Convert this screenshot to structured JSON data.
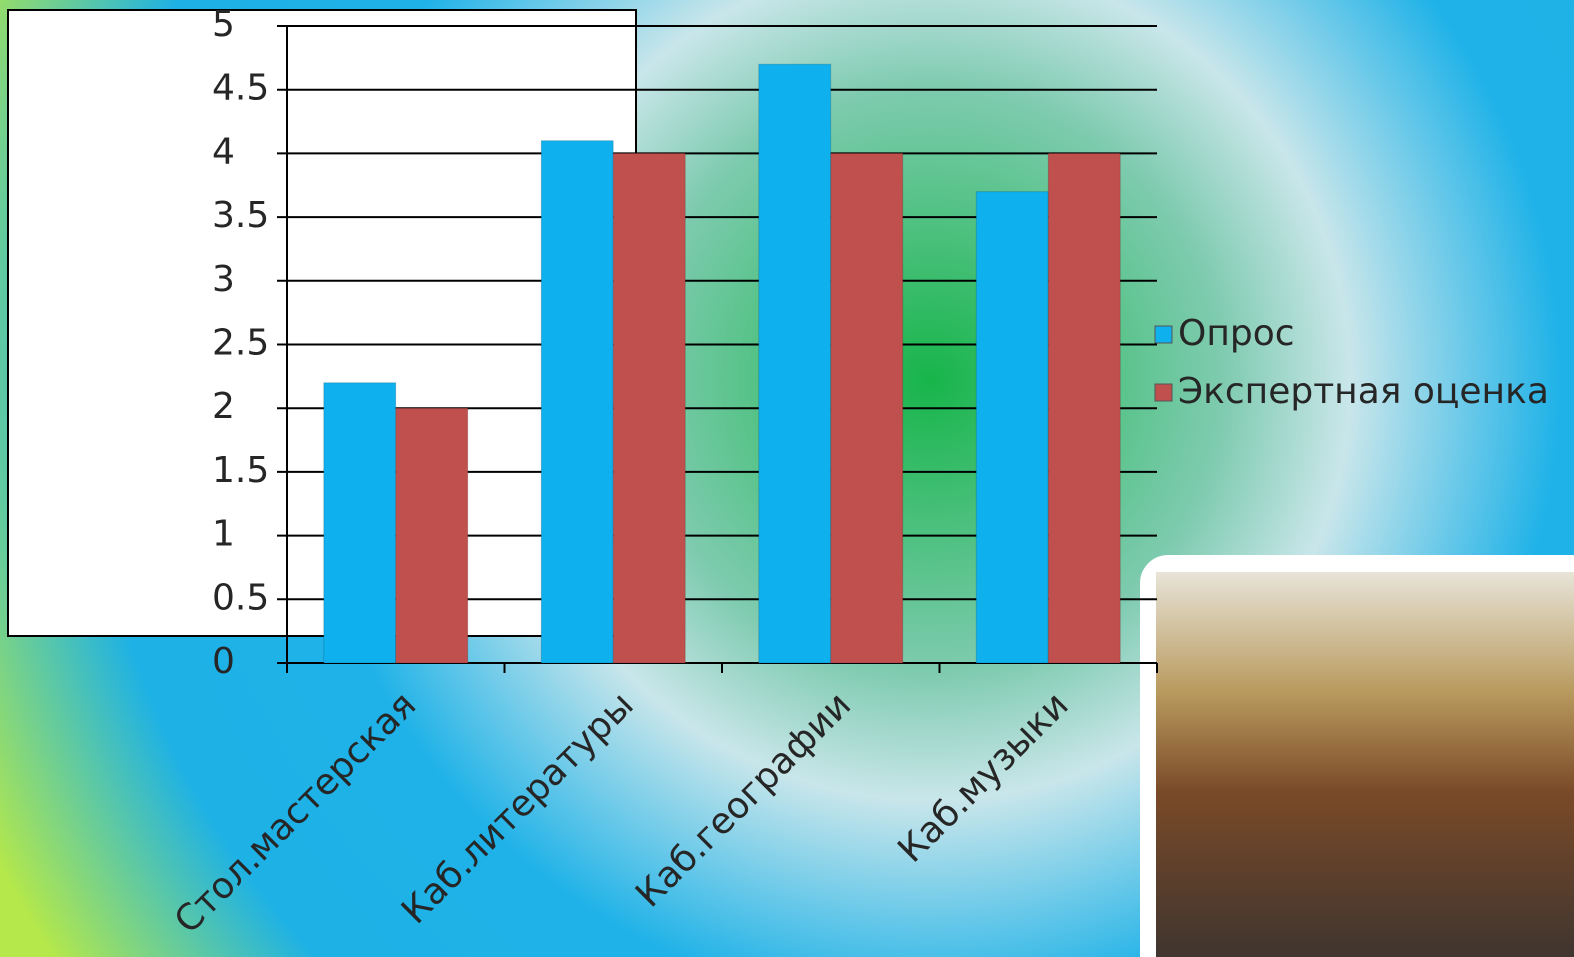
{
  "chart_data": {
    "type": "bar",
    "categories": [
      "Стол.мастерская",
      "Каб.литературы",
      "Каб.географии",
      "Каб.музыки"
    ],
    "series": [
      {
        "name": "Опрос",
        "color": "#0fb0ee",
        "values": [
          2.2,
          4.1,
          4.7,
          3.7
        ]
      },
      {
        "name": "Экспертная оценка",
        "color": "#c0504d",
        "values": [
          2,
          4,
          4,
          4
        ]
      }
    ],
    "ylim": [
      0,
      5
    ],
    "yticks": [
      0,
      0.5,
      1,
      1.5,
      2,
      2.5,
      3,
      3.5,
      4,
      4.5,
      5
    ],
    "grid": true,
    "legend": "right"
  }
}
